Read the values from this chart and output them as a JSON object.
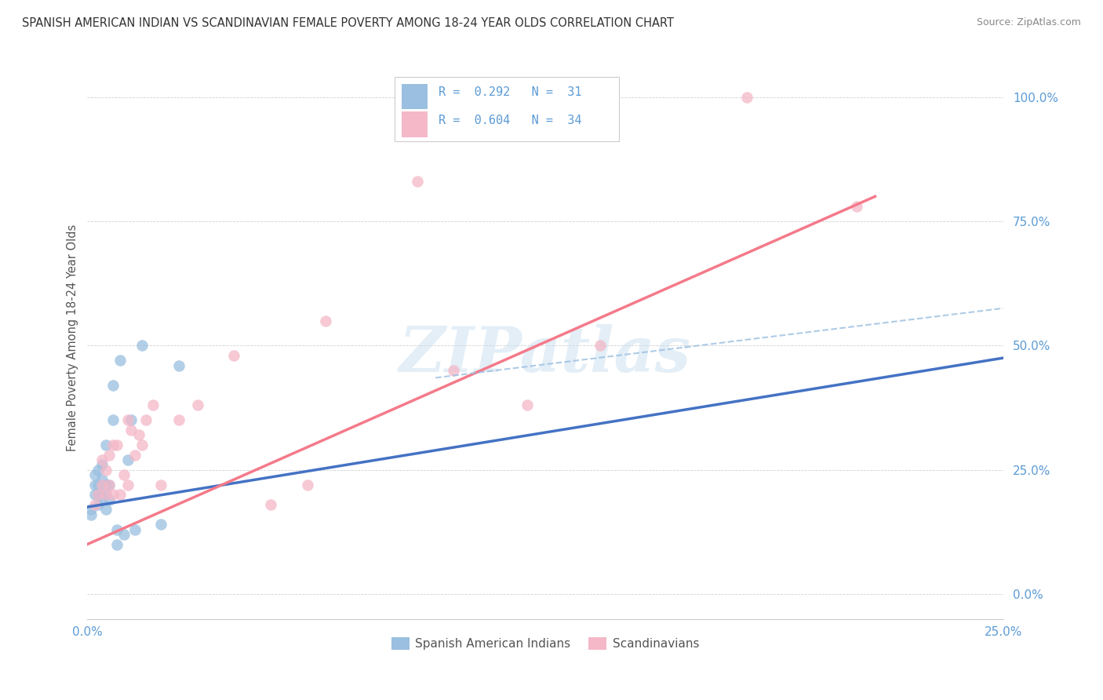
{
  "title": "SPANISH AMERICAN INDIAN VS SCANDINAVIAN FEMALE POVERTY AMONG 18-24 YEAR OLDS CORRELATION CHART",
  "source": "Source: ZipAtlas.com",
  "ylabel": "Female Poverty Among 18-24 Year Olds",
  "yticks": [
    0.0,
    0.25,
    0.5,
    0.75,
    1.0
  ],
  "ytick_labels": [
    "0.0%",
    "25.0%",
    "50.0%",
    "75.0%",
    "100.0%"
  ],
  "xtick_labels_show": [
    "0.0%",
    "25.0%"
  ],
  "xmin": 0.0,
  "xmax": 0.25,
  "ymin": -0.05,
  "ymax": 1.08,
  "color_blue": "#9abfe0",
  "color_pink": "#f4b8c8",
  "color_blue_line": "#4472c4",
  "color_pink_line": "#f47a8a",
  "color_dash": "#9abfe0",
  "color_tick": "#5b9bd5",
  "watermark_text": "ZIPatlas",
  "blue_scatter_x": [
    0.001,
    0.001,
    0.002,
    0.002,
    0.002,
    0.003,
    0.003,
    0.003,
    0.003,
    0.004,
    0.004,
    0.004,
    0.004,
    0.005,
    0.005,
    0.005,
    0.005,
    0.006,
    0.006,
    0.007,
    0.007,
    0.008,
    0.008,
    0.009,
    0.01,
    0.011,
    0.012,
    0.013,
    0.015,
    0.02,
    0.025
  ],
  "blue_scatter_y": [
    0.16,
    0.17,
    0.2,
    0.22,
    0.24,
    0.18,
    0.2,
    0.22,
    0.25,
    0.19,
    0.21,
    0.23,
    0.26,
    0.17,
    0.2,
    0.22,
    0.3,
    0.19,
    0.22,
    0.35,
    0.42,
    0.1,
    0.13,
    0.47,
    0.12,
    0.27,
    0.35,
    0.13,
    0.5,
    0.14,
    0.46
  ],
  "pink_scatter_x": [
    0.002,
    0.003,
    0.004,
    0.004,
    0.005,
    0.005,
    0.006,
    0.006,
    0.007,
    0.007,
    0.008,
    0.009,
    0.01,
    0.011,
    0.011,
    0.012,
    0.013,
    0.014,
    0.015,
    0.016,
    0.018,
    0.02,
    0.025,
    0.03,
    0.04,
    0.05,
    0.06,
    0.065,
    0.09,
    0.1,
    0.12,
    0.14,
    0.18,
    0.21
  ],
  "pink_scatter_y": [
    0.18,
    0.2,
    0.22,
    0.27,
    0.2,
    0.25,
    0.22,
    0.28,
    0.2,
    0.3,
    0.3,
    0.2,
    0.24,
    0.22,
    0.35,
    0.33,
    0.28,
    0.32,
    0.3,
    0.35,
    0.38,
    0.22,
    0.35,
    0.38,
    0.48,
    0.18,
    0.22,
    0.55,
    0.83,
    0.45,
    0.38,
    0.5,
    1.0,
    0.78
  ],
  "blue_line_x": [
    0.0,
    0.25
  ],
  "blue_line_y": [
    0.175,
    0.475
  ],
  "pink_line_x": [
    0.0,
    0.215
  ],
  "pink_line_y": [
    0.1,
    0.8
  ],
  "dash_line_x": [
    0.095,
    0.25
  ],
  "dash_line_y": [
    0.435,
    0.575
  ],
  "legend_text_color": "#5b9bd5",
  "legend_box_color": "#cccccc"
}
